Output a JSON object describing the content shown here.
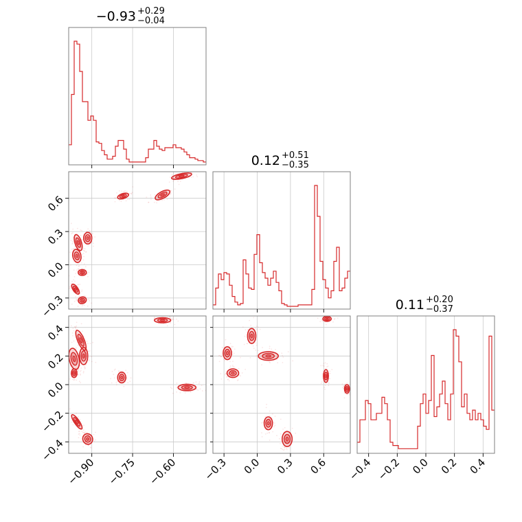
{
  "chart_data": {
    "type": "corner",
    "color": "#d62728",
    "parameters": [
      {
        "title": {
          "median": "−0.93",
          "plus": "+0.29",
          "minus": "−0.04"
        },
        "range": [
          -0.985,
          -0.48
        ],
        "ticks": [
          -0.9,
          -0.75,
          -0.6
        ],
        "tick_labels": [
          "−0.90",
          "−0.75",
          "−0.60"
        ]
      },
      {
        "title": {
          "median": "0.12",
          "plus": "+0.51",
          "minus": "−0.35"
        },
        "range": [
          -0.4,
          0.84
        ],
        "ticks": [
          -0.3,
          0.0,
          0.3,
          0.6
        ],
        "tick_labels": [
          "−0.3",
          "0.0",
          "0.3",
          "0.6"
        ]
      },
      {
        "title": {
          "median": "0.11",
          "plus": "+0.20",
          "minus": "−0.37"
        },
        "range": [
          -0.48,
          0.48
        ],
        "ticks": [
          -0.4,
          -0.2,
          0.0,
          0.2,
          0.4
        ],
        "tick_labels": [
          "−0.4",
          "−0.2",
          "0.0",
          "0.2",
          "0.4"
        ]
      }
    ],
    "histograms": [
      {
        "param": 0,
        "bin_edges_start": -0.985,
        "bin_width": 0.0101,
        "counts": [
          13,
          48,
          85,
          83,
          64,
          43,
          43,
          30,
          33,
          30,
          15,
          14,
          9,
          6,
          3,
          3,
          5,
          12,
          16,
          16,
          10,
          3,
          1,
          1,
          1,
          1,
          1,
          1,
          4,
          10,
          10,
          16,
          12,
          10,
          9,
          11,
          11,
          11,
          13,
          11,
          11,
          10,
          8,
          6,
          4,
          4,
          3,
          2,
          2,
          1
        ]
      },
      {
        "param": 1,
        "bin_edges_start": -0.4,
        "bin_width": 0.0248,
        "counts": [
          2,
          14,
          24,
          20,
          25,
          24,
          16,
          8,
          4,
          2,
          3,
          34,
          24,
          14,
          13,
          38,
          52,
          32,
          25,
          21,
          16,
          21,
          26,
          18,
          12,
          3,
          2,
          1,
          1,
          1,
          1,
          2,
          2,
          2,
          2,
          2,
          13,
          87,
          65,
          33,
          20,
          14,
          7,
          12,
          33,
          43,
          12,
          14,
          21,
          26
        ]
      },
      {
        "param": 2,
        "bin_edges_start": -0.48,
        "bin_width": 0.0192,
        "counts": [
          3,
          10,
          10,
          16,
          15,
          10,
          10,
          12,
          12,
          17,
          15,
          10,
          3,
          2,
          2,
          1,
          1,
          1,
          1,
          1,
          1,
          1,
          8,
          15,
          18,
          12,
          16,
          30,
          11,
          14,
          18,
          22,
          15,
          10,
          18,
          38,
          36,
          28,
          14,
          18,
          12,
          10,
          13,
          10,
          12,
          10,
          8,
          7,
          36,
          13
        ]
      }
    ],
    "scatter_panels": [
      {
        "x_param": 0,
        "y_param": 1,
        "clusters": [
          {
            "x": -0.95,
            "y": 0.2,
            "sx": 0.008,
            "sy": 0.05,
            "rot": 0.3
          },
          {
            "x": -0.955,
            "y": 0.08,
            "sx": 0.01,
            "sy": 0.04,
            "rot": 0.2
          },
          {
            "x": -0.915,
            "y": 0.24,
            "sx": 0.01,
            "sy": 0.035,
            "rot": 0.0
          },
          {
            "x": -0.935,
            "y": -0.07,
            "sx": 0.01,
            "sy": 0.018,
            "rot": 0.0
          },
          {
            "x": -0.96,
            "y": -0.22,
            "sx": 0.006,
            "sy": 0.035,
            "rot": 0.6
          },
          {
            "x": -0.935,
            "y": -0.32,
            "sx": 0.01,
            "sy": 0.02,
            "rot": 0.3
          },
          {
            "x": -0.785,
            "y": 0.62,
            "sx": 0.014,
            "sy": 0.015,
            "rot": 0.3
          },
          {
            "x": -0.64,
            "y": 0.63,
            "sx": 0.02,
            "sy": 0.02,
            "rot": 0.5
          },
          {
            "x": -0.57,
            "y": 0.8,
            "sx": 0.025,
            "sy": 0.015,
            "rot": 0.2
          }
        ]
      },
      {
        "x_param": 0,
        "y_param": 2,
        "clusters": [
          {
            "x": -0.965,
            "y": 0.18,
            "sx": 0.012,
            "sy": 0.05,
            "rot": 0.2
          },
          {
            "x": -0.94,
            "y": 0.31,
            "sx": 0.008,
            "sy": 0.05,
            "rot": 0.4
          },
          {
            "x": -0.93,
            "y": 0.2,
            "sx": 0.01,
            "sy": 0.04,
            "rot": 0.0
          },
          {
            "x": -0.965,
            "y": 0.08,
            "sx": 0.007,
            "sy": 0.02,
            "rot": 0.0
          },
          {
            "x": -0.955,
            "y": -0.26,
            "sx": 0.006,
            "sy": 0.04,
            "rot": 0.6
          },
          {
            "x": -0.915,
            "y": -0.38,
            "sx": 0.012,
            "sy": 0.025,
            "rot": 0.4
          },
          {
            "x": -0.79,
            "y": 0.05,
            "sx": 0.01,
            "sy": 0.025,
            "rot": 0.0
          },
          {
            "x": -0.64,
            "y": 0.45,
            "sx": 0.02,
            "sy": 0.012,
            "rot": 0.0
          },
          {
            "x": -0.55,
            "y": -0.02,
            "sx": 0.022,
            "sy": 0.015,
            "rot": 0.0
          }
        ]
      },
      {
        "x_param": 1,
        "y_param": 2,
        "clusters": [
          {
            "x": -0.27,
            "y": 0.22,
            "sx": 0.025,
            "sy": 0.03,
            "rot": 0.0
          },
          {
            "x": -0.22,
            "y": 0.08,
            "sx": 0.035,
            "sy": 0.02,
            "rot": 0.0
          },
          {
            "x": -0.05,
            "y": 0.34,
            "sx": 0.025,
            "sy": 0.035,
            "rot": 0.0
          },
          {
            "x": 0.1,
            "y": 0.2,
            "sx": 0.06,
            "sy": 0.02,
            "rot": 0.0
          },
          {
            "x": 0.1,
            "y": -0.27,
            "sx": 0.025,
            "sy": 0.03,
            "rot": 0.0
          },
          {
            "x": 0.27,
            "y": -0.38,
            "sx": 0.03,
            "sy": 0.035,
            "rot": 0.0
          },
          {
            "x": 0.62,
            "y": 0.06,
            "sx": 0.015,
            "sy": 0.03,
            "rot": 0.0
          },
          {
            "x": 0.63,
            "y": 0.46,
            "sx": 0.025,
            "sy": 0.012,
            "rot": 0.0
          },
          {
            "x": 0.81,
            "y": -0.03,
            "sx": 0.015,
            "sy": 0.02,
            "rot": 0.0
          }
        ]
      }
    ]
  }
}
